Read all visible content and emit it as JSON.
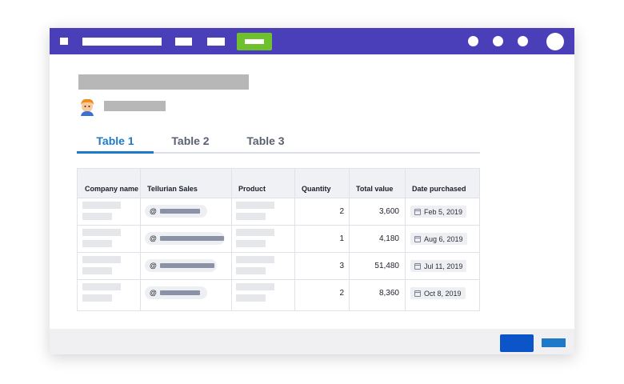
{
  "colors": {
    "topbar": "#4a3fb8",
    "active_nav": "#6ec12c",
    "active_tab": "#1d7ac9",
    "primary_button": "#0b55c8",
    "secondary_button": "#1d7ac9"
  },
  "topbar": {
    "icons": [
      "window-square-icon",
      "notification-dot-icon",
      "notification-dot-icon",
      "notification-dot-icon",
      "user-avatar-icon"
    ]
  },
  "header": {
    "avatar_icon": "user-avatar-icon"
  },
  "tabs": [
    {
      "label": "Table 1",
      "active": true
    },
    {
      "label": "Table 2",
      "active": false
    },
    {
      "label": "Table 3",
      "active": false
    }
  ],
  "table": {
    "columns": [
      "Company name",
      "Tellurian Sales",
      "Product",
      "Quantity",
      "Total value",
      "Date purchased"
    ],
    "rows": [
      {
        "mention_prefix": "@",
        "quantity": "2",
        "total": "3,600",
        "date": "Feb 5, 2019"
      },
      {
        "mention_prefix": "@",
        "quantity": "1",
        "total": "4,180",
        "date": "Aug 6, 2019"
      },
      {
        "mention_prefix": "@",
        "quantity": "3",
        "total": "51,480",
        "date": "Jul 11, 2019"
      },
      {
        "mention_prefix": "@",
        "quantity": "2",
        "total": "8,360",
        "date": "Oct 8, 2019"
      }
    ],
    "date_icon": "calendar-icon"
  }
}
